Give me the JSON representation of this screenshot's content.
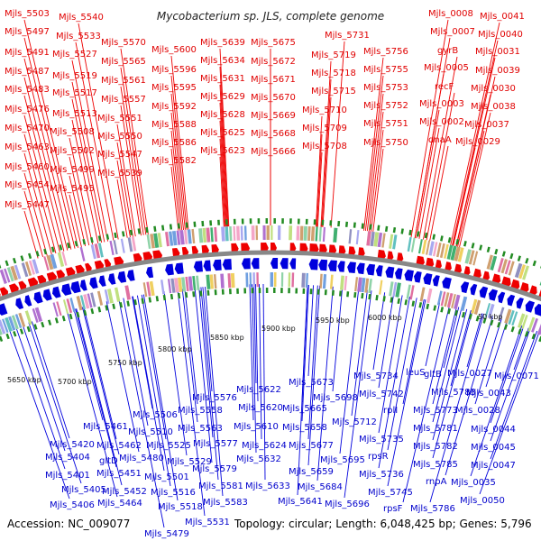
{
  "title": "Mycobacterium sp. JLS, complete genome",
  "footer": {
    "accession": "Accession: NC_009077",
    "summary": "Topology: circular; Length: 6,048,425 bp; Genes: 5,796"
  },
  "colors": {
    "forward": "#ee0000",
    "reverse": "#0000dd",
    "backbone": "#888888",
    "tick": "#228b22"
  },
  "kbp_labels": [
    "5650 kbp",
    "5700 kbp",
    "5750 kbp",
    "5800 kbp",
    "5850 kbp",
    "5900 kbp",
    "5950 kbp",
    "6000 kbp",
    "50 kbp"
  ],
  "forward_labels": [
    "Mjls_5503",
    "Mjls_5540",
    "Mjls_5497",
    "Mjls_5533",
    "Mjls_5491",
    "Mjls_5527",
    "Mjls_5487",
    "Mjls_5519",
    "Mjls_5483",
    "Mjls_5517",
    "Mjls_5476",
    "Mjls_5513",
    "Mjls_5470",
    "Mjls_5508",
    "Mjls_5463",
    "Mjls_5502",
    "Mjls_5460",
    "Mjls_5499",
    "Mjls_5454",
    "Mjls_5495",
    "Mjls_5447",
    "Mjls_5570",
    "Mjls_5565",
    "Mjls_5561",
    "Mjls_5557",
    "Mjls_5551",
    "Mjls_5550",
    "Mjls_5547",
    "Mjls_5539",
    "Mjls_5600",
    "Mjls_5596",
    "Mjls_5595",
    "Mjls_5592",
    "Mjls_5588",
    "Mjls_5586",
    "Mjls_5582",
    "Mjls_5639",
    "Mjls_5634",
    "Mjls_5631",
    "Mjls_5629",
    "Mjls_5628",
    "Mjls_5625",
    "Mjls_5623",
    "Mjls_5675",
    "Mjls_5672",
    "Mjls_5671",
    "Mjls_5670",
    "Mjls_5669",
    "Mjls_5668",
    "Mjls_5666",
    "Mjls_5731",
    "Mjls_5719",
    "Mjls_5718",
    "Mjls_5715",
    "Mjls_5710",
    "Mjls_5709",
    "Mjls_5708",
    "Mjls_5756",
    "Mjls_5755",
    "Mjls_5753",
    "Mjls_5752",
    "Mjls_5751",
    "Mjls_5750",
    "Mjls_0008",
    "Mjls_0041",
    "Mjls_0007",
    "Mjls_0040",
    "gyrB",
    "Mjls_0031",
    "Mjls_0005",
    "Mjls_0039",
    "recF",
    "Mjls_0030",
    "Mjls_0003",
    "Mjls_0038",
    "Mjls_0002",
    "Mjls_0037",
    "dnaA",
    "Mjls_0029"
  ],
  "reverse_labels": [
    "Mjls_5734",
    "leuS",
    "Mjls_5742",
    "gltB",
    "Mjls_0027",
    "Mjls_0071",
    "Mjls_5673",
    "Mjls_5698",
    "Mjls_5622",
    "Mjls_5576",
    "Mjls_5620",
    "Mjls_5665",
    "Mjls_5506",
    "Mjls_5558",
    "Mjls_5461",
    "Mjls_5510",
    "Mjls_5563",
    "Mjls_5610",
    "Mjls_5658",
    "Mjls_5712",
    "rplI",
    "Mjls_5773",
    "Mjls_5783",
    "Mjls_0043",
    "Mjls_0028",
    "Mjls_5420",
    "Mjls_5462",
    "Mjls_5525",
    "Mjls_5577",
    "Mjls_5624",
    "Mjls_5677",
    "Mjls_5735",
    "Mjls_5781",
    "Mjls_0044",
    "Mjls_5404",
    "gltD",
    "Mjls_5480",
    "Mjls_5529",
    "Mjls_5632",
    "Mjls_5695",
    "rpsR",
    "Mjls_5782",
    "Mjls_0045",
    "Mjls_5401",
    "Mjls_5451",
    "Mjls_5501",
    "Mjls_5579",
    "Mjls_5659",
    "Mjls_5736",
    "Mjls_5785",
    "Mjls_0047",
    "Mjls_5405",
    "Mjls_5452",
    "Mjls_5516",
    "Mjls_5581",
    "Mjls_5633",
    "Mjls_5684",
    "Mjls_5745",
    "rnpA",
    "Mjls_0035",
    "Mjls_5406",
    "Mjls_5464",
    "Mjls_5518",
    "Mjls_5583",
    "Mjls_5641",
    "Mjls_5696",
    "rpsF",
    "Mjls_5786",
    "Mjls_0050",
    "Mjls_5531",
    "Mjls_5479"
  ]
}
